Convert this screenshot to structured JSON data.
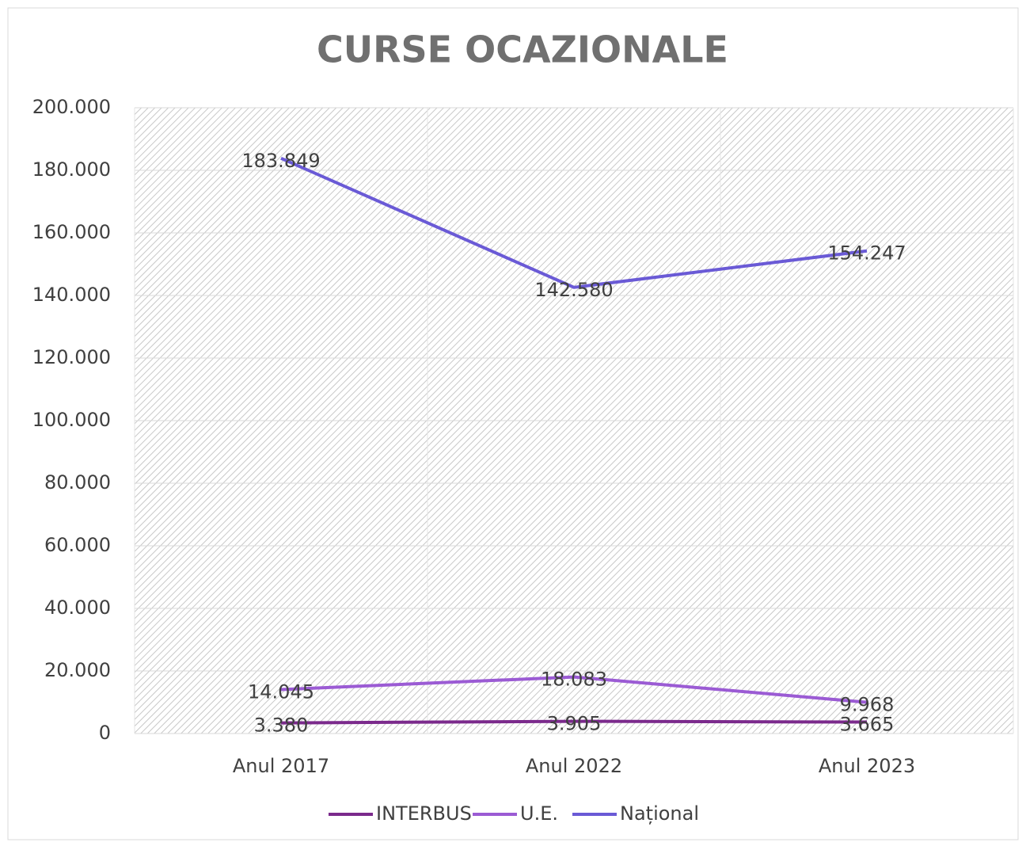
{
  "chart_data": {
    "type": "line",
    "title": "CURSE OCAZIONALE",
    "categories": [
      "Anul 2017",
      "Anul 2022",
      "Anul 2023"
    ],
    "series": [
      {
        "name": "INTERBUS",
        "color": "#7b2a8c",
        "values": [
          3380,
          3905,
          3665
        ],
        "value_labels": [
          "3.380",
          "3.905",
          "3.665"
        ]
      },
      {
        "name": "U.E.",
        "color": "#9b5bd4",
        "values": [
          14045,
          18083,
          9968
        ],
        "value_labels": [
          "14.045",
          "18.083",
          "9.968"
        ]
      },
      {
        "name": "Național",
        "color": "#6a5ad6",
        "values": [
          183849,
          142580,
          154247
        ],
        "value_labels": [
          "183.849",
          "142.580",
          "154.247"
        ]
      }
    ],
    "ylim": [
      0,
      200000
    ],
    "yticks": [
      0,
      {
        "value": 20000,
        "label": "20.000"
      },
      {
        "value": 40000,
        "label": "40.000"
      },
      {
        "value": 60000,
        "label": "60.000"
      },
      {
        "value": 80000,
        "label": "80.000"
      },
      {
        "value": 100000,
        "label": "100.000"
      },
      {
        "value": 120000,
        "label": "120.000"
      },
      {
        "value": 140000,
        "label": "140.000"
      },
      {
        "value": 160000,
        "label": "160.000"
      },
      {
        "value": 180000,
        "label": "180.000"
      },
      {
        "value": 200000,
        "label": "200.000"
      }
    ],
    "grid": true,
    "legend": "bottom"
  }
}
